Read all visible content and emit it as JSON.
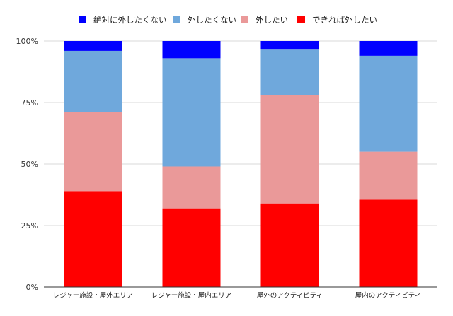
{
  "chart_data": {
    "type": "bar",
    "stacked": true,
    "percent": true,
    "categories": [
      "レジャー施設・屋外エリア",
      "レジャー施設・屋内エリア",
      "屋外のアクティビティ",
      "屋内のアクティビティ"
    ],
    "series": [
      {
        "name": "できれば外したい",
        "color": "#ff0000",
        "values": [
          39,
          32,
          34,
          35.5
        ]
      },
      {
        "name": "外したい",
        "color": "#ea9999",
        "values": [
          32,
          17,
          44,
          19.5
        ]
      },
      {
        "name": "外したくない",
        "color": "#6fa8dc",
        "values": [
          25,
          44,
          18.5,
          39
        ]
      },
      {
        "name": "絶対に外したくない",
        "color": "#0000ff",
        "values": [
          4,
          7,
          3.5,
          6
        ]
      }
    ],
    "legend_order": [
      "絶対に外したくない",
      "外したくない",
      "外したい",
      "できれば外したい"
    ],
    "yticks": [
      "0%",
      "25%",
      "50%",
      "75%",
      "100%"
    ],
    "ylim": [
      0,
      100
    ],
    "grid": true,
    "legend_position": "top"
  }
}
